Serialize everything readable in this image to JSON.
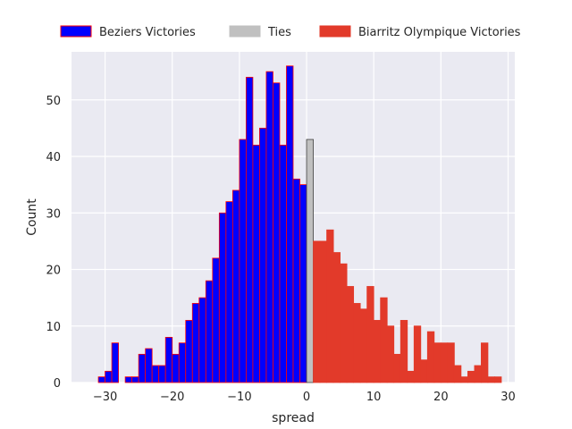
{
  "chart_data": {
    "type": "bar",
    "title": "",
    "xlabel": "spread",
    "ylabel": "Count",
    "xlim": [
      -35,
      31
    ],
    "ylim": [
      0,
      58.5
    ],
    "xticks": [
      -30,
      -20,
      -10,
      0,
      10,
      20,
      30
    ],
    "yticks": [
      0,
      10,
      20,
      30,
      40,
      50
    ],
    "grid": true,
    "legend_placement": "top, above plot",
    "bin_width": 1,
    "series": [
      {
        "name": "Beziers Victories",
        "color": "#0000ff",
        "edgecolor": "#ff0000",
        "x": [
          -32,
          -31,
          -30,
          -29,
          -28,
          -27,
          -26,
          -25,
          -24,
          -23,
          -22,
          -21,
          -20,
          -19,
          -18,
          -17,
          -16,
          -15,
          -14,
          -13,
          -12,
          -11,
          -10,
          -9,
          -8,
          -7,
          -6,
          -5,
          -4,
          -3,
          -2,
          -1
        ],
        "values": [
          0,
          1,
          2,
          7,
          0,
          1,
          1,
          5,
          6,
          3,
          3,
          8,
          5,
          7,
          11,
          14,
          15,
          18,
          22,
          30,
          32,
          34,
          43,
          54,
          42,
          45,
          55,
          53,
          42,
          56,
          36,
          35
        ]
      },
      {
        "name": "Ties",
        "color": "#c0c0c0",
        "edgecolor": "#404040",
        "x": [
          0
        ],
        "values": [
          43
        ]
      },
      {
        "name": "Biarritz Olympique Victories",
        "color": "#e23a2a",
        "edgecolor": "#e23a2a",
        "x": [
          1,
          2,
          3,
          4,
          5,
          6,
          7,
          8,
          9,
          10,
          11,
          12,
          13,
          14,
          15,
          16,
          17,
          18,
          19,
          20,
          21,
          22,
          23,
          24,
          25,
          26,
          27,
          28
        ],
        "values": [
          25,
          25,
          27,
          23,
          21,
          17,
          14,
          13,
          17,
          11,
          15,
          10,
          5,
          11,
          2,
          10,
          4,
          9,
          7,
          7,
          7,
          3,
          1,
          2,
          3,
          7,
          1,
          1
        ]
      }
    ]
  }
}
